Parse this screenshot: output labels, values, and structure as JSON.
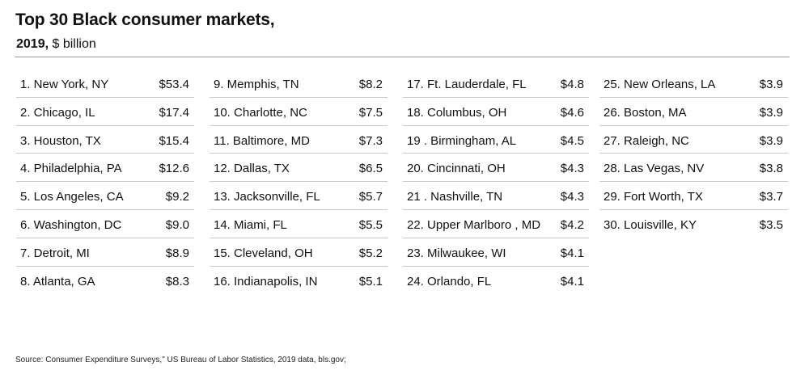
{
  "chart_data": {
    "type": "table",
    "title": "Top 30 Black consumer markets,",
    "subtitle_bold": "2019,",
    "subtitle_rest": " $ billion",
    "source": "Source: Consumer Expenditure Surveys,\" US Bureau of Labor Statistics, 2019 data, bls.gov;",
    "columns": [
      [
        {
          "label": "1.  New York, NY",
          "value": "$53.4"
        },
        {
          "label": "2. Chicago, IL",
          "value": "$17.4"
        },
        {
          "label": "3. Houston, TX",
          "value": "$15.4"
        },
        {
          "label": "4. Philadelphia, PA",
          "value": "$12.6"
        },
        {
          "label": "5. Los Angeles, CA",
          "value": "$9.2"
        },
        {
          "label": "6. Washington, DC",
          "value": "$9.0"
        },
        {
          "label": "7. Detroit, MI",
          "value": "$8.9"
        },
        {
          "label": "8. Atlanta, GA",
          "value": "$8.3"
        }
      ],
      [
        {
          "label": "9. Memphis, TN",
          "value": "$8.2"
        },
        {
          "label": "10. Charlotte, NC",
          "value": "$7.5"
        },
        {
          "label": "11. Baltimore, MD",
          "value": "$7.3"
        },
        {
          "label": "12. Dallas, TX",
          "value": "$6.5"
        },
        {
          "label": "13. Jacksonville, FL",
          "value": "$5.7"
        },
        {
          "label": "14. Miami, FL",
          "value": "$5.5"
        },
        {
          "label": "15. Cleveland, OH",
          "value": "$5.2"
        },
        {
          "label": "16. Indianapolis, IN",
          "value": "$5.1"
        }
      ],
      [
        {
          "label": "17. Ft. Lauderdale, FL",
          "value": "$4.8"
        },
        {
          "label": "18. Columbus, OH",
          "value": "$4.6"
        },
        {
          "label": "19 . Birmingham, AL",
          "value": "$4.5"
        },
        {
          "label": "20. Cincinnati, OH",
          "value": "$4.3"
        },
        {
          "label": "21 . Nashville, TN",
          "value": "$4.3"
        },
        {
          "label": "22. Upper Marlboro , MD",
          "value": "$4.2"
        },
        {
          "label": "23. Milwaukee, WI",
          "value": "$4.1"
        },
        {
          "label": "24. Orlando, FL",
          "value": "$4.1"
        }
      ],
      [
        {
          "label": "25. New Orleans, LA",
          "value": "$3.9"
        },
        {
          "label": "26. Boston, MA",
          "value": "$3.9"
        },
        {
          "label": "27. Raleigh, NC",
          "value": "$3.9"
        },
        {
          "label": "28. Las Vegas, NV",
          "value": "$3.8"
        },
        {
          "label": "29. Fort Worth, TX",
          "value": "$3.7"
        },
        {
          "label": "30. Louisville, KY",
          "value": "$3.5"
        }
      ]
    ]
  }
}
